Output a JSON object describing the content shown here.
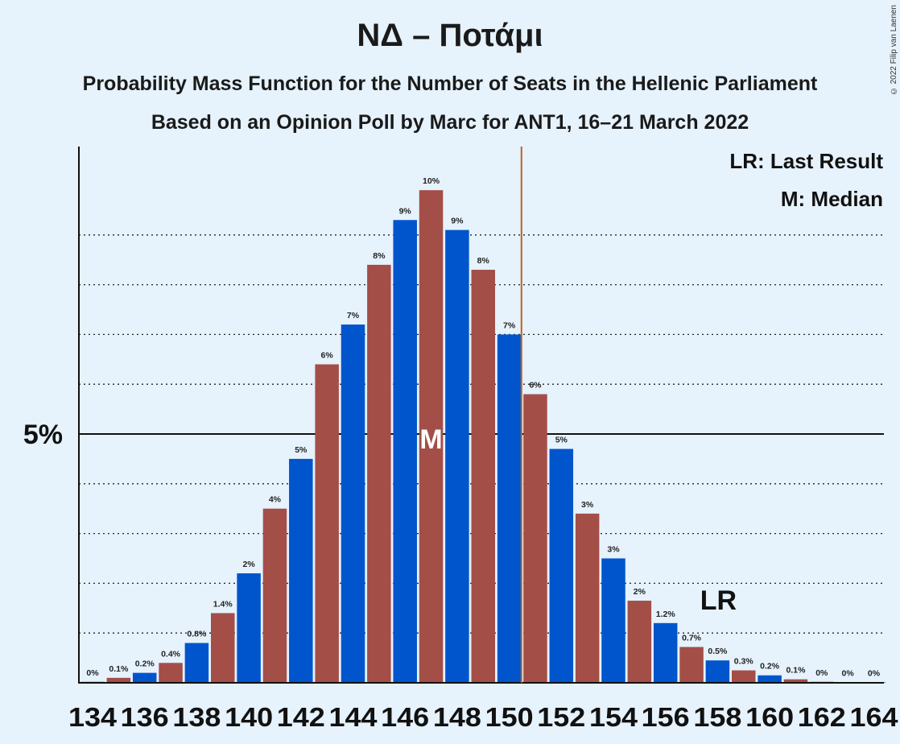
{
  "title": "ΝΔ – Ποτάμι",
  "subtitle1": "Probability Mass Function for the Number of Seats in the Hellenic Parliament",
  "subtitle2": "Based on an Opinion Poll by Marc for ANT1, 16–21 March 2022",
  "copyright": "© 2022 Filip van Laenen",
  "legend": {
    "lr": "LR: Last Result",
    "m": "M: Median"
  },
  "markers": {
    "median_label": "M",
    "last_result_label": "LR",
    "median_seat": 147,
    "last_result_seat": 151
  },
  "colors": {
    "blue": "#0055cc",
    "red": "#a44e48",
    "background": "#e6f2fc",
    "majority_line": "#c0631a"
  },
  "chart_data": {
    "type": "bar",
    "xlabel": "",
    "ylabel": "",
    "ylim": [
      0,
      10.8
    ],
    "ytick_label": "5%",
    "ytick_value": 5,
    "grid": "dotted horizontal lines every 1%",
    "x_tick_labels": [
      "134",
      "136",
      "138",
      "140",
      "142",
      "144",
      "146",
      "148",
      "150",
      "152",
      "154",
      "156",
      "158",
      "160",
      "162",
      "164"
    ],
    "seats": [
      134,
      135,
      136,
      137,
      138,
      139,
      140,
      141,
      142,
      143,
      144,
      145,
      146,
      147,
      148,
      149,
      150,
      151,
      152,
      153,
      154,
      155,
      156,
      157,
      158,
      159,
      160,
      161,
      162,
      163,
      164
    ],
    "values": [
      0.02,
      0.1,
      0.2,
      0.4,
      0.8,
      1.4,
      2.2,
      3.5,
      4.5,
      6.4,
      7.2,
      8.4,
      9.3,
      9.9,
      9.1,
      8.3,
      7.0,
      5.8,
      4.7,
      3.4,
      2.5,
      1.65,
      1.2,
      0.72,
      0.45,
      0.25,
      0.15,
      0.07,
      0.02,
      0.01,
      0.01
    ],
    "labels": [
      "0%",
      "0.1%",
      "0.2%",
      "0.4%",
      "0.8%",
      "1.4%",
      "2%",
      "4%",
      "5%",
      "6%",
      "7%",
      "8%",
      "9%",
      "10%",
      "9%",
      "8%",
      "7%",
      "6%",
      "5%",
      "3%",
      "3%",
      "2%",
      "1.2%",
      "0.7%",
      "0.5%",
      "0.3%",
      "0.2%",
      "0.1%",
      "0%",
      "0%",
      "0%"
    ]
  }
}
